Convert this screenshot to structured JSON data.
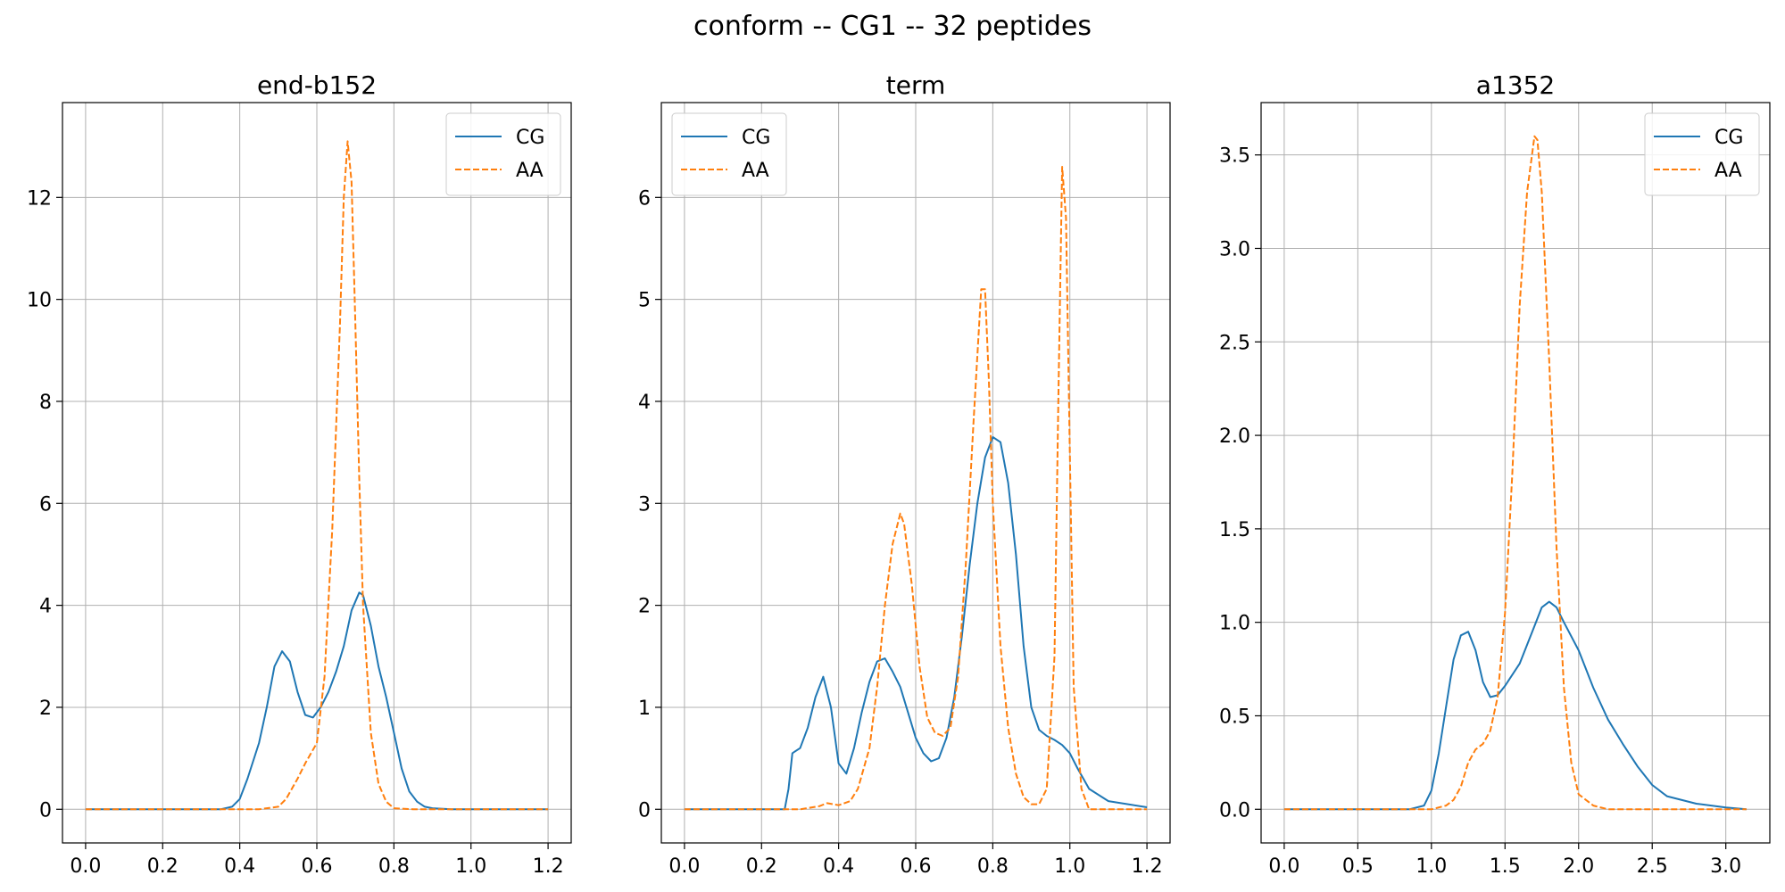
{
  "suptitle": "conform -- CG1 -- 32 peptides",
  "colors": {
    "CG": "#1f77b4",
    "AA": "#ff7f0e",
    "grid": "#b0b0b0"
  },
  "chart_data": [
    {
      "type": "line",
      "title": "end-b152",
      "xlabel": "",
      "ylabel": "",
      "xlim": [
        -0.06,
        1.26
      ],
      "ylim": [
        -0.66,
        13.86
      ],
      "xticks": [
        0.0,
        0.2,
        0.4,
        0.6,
        0.8,
        1.0,
        1.2
      ],
      "xtick_labels": [
        "0.0",
        "0.2",
        "0.4",
        "0.6",
        "0.8",
        "1.0",
        "1.2"
      ],
      "yticks": [
        0,
        2,
        4,
        6,
        8,
        10,
        12
      ],
      "ytick_labels": [
        "0",
        "2",
        "4",
        "6",
        "8",
        "10",
        "12"
      ],
      "grid": true,
      "legend": "upper right",
      "series": [
        {
          "name": "CG",
          "style": "solid",
          "x": [
            0,
            0.35,
            0.38,
            0.4,
            0.42,
            0.45,
            0.47,
            0.49,
            0.51,
            0.53,
            0.55,
            0.57,
            0.59,
            0.61,
            0.63,
            0.65,
            0.67,
            0.69,
            0.71,
            0.72,
            0.74,
            0.76,
            0.78,
            0.8,
            0.82,
            0.84,
            0.86,
            0.88,
            0.9,
            0.95,
            1.2
          ],
          "y": [
            0,
            0,
            0.05,
            0.2,
            0.6,
            1.3,
            2.0,
            2.8,
            3.1,
            2.9,
            2.3,
            1.85,
            1.8,
            2.0,
            2.3,
            2.7,
            3.2,
            3.9,
            4.25,
            4.2,
            3.6,
            2.8,
            2.2,
            1.5,
            0.8,
            0.35,
            0.15,
            0.05,
            0.02,
            0,
            0
          ]
        },
        {
          "name": "AA",
          "style": "dashed",
          "x": [
            0,
            0.45,
            0.5,
            0.52,
            0.55,
            0.57,
            0.6,
            0.62,
            0.64,
            0.66,
            0.67,
            0.68,
            0.69,
            0.7,
            0.71,
            0.72,
            0.74,
            0.76,
            0.78,
            0.8,
            0.85,
            1.2
          ],
          "y": [
            0,
            0,
            0.05,
            0.2,
            0.6,
            0.9,
            1.3,
            2.6,
            5.5,
            9.5,
            12.0,
            13.1,
            12.3,
            9.5,
            6.5,
            4.0,
            1.5,
            0.5,
            0.15,
            0.02,
            0,
            0
          ]
        }
      ]
    },
    {
      "type": "line",
      "title": "term",
      "xlabel": "",
      "ylabel": "",
      "xlim": [
        -0.06,
        1.26
      ],
      "ylim": [
        -0.33,
        6.93
      ],
      "xticks": [
        0.0,
        0.2,
        0.4,
        0.6,
        0.8,
        1.0,
        1.2
      ],
      "xtick_labels": [
        "0.0",
        "0.2",
        "0.4",
        "0.6",
        "0.8",
        "1.0",
        "1.2"
      ],
      "yticks": [
        0,
        1,
        2,
        3,
        4,
        5,
        6
      ],
      "ytick_labels": [
        "0",
        "1",
        "2",
        "3",
        "4",
        "5",
        "6"
      ],
      "grid": true,
      "legend": "upper left",
      "series": [
        {
          "name": "CG",
          "style": "solid",
          "x": [
            0,
            0.26,
            0.27,
            0.28,
            0.3,
            0.32,
            0.34,
            0.36,
            0.38,
            0.4,
            0.42,
            0.44,
            0.46,
            0.48,
            0.5,
            0.52,
            0.54,
            0.56,
            0.58,
            0.6,
            0.62,
            0.64,
            0.66,
            0.68,
            0.7,
            0.72,
            0.74,
            0.76,
            0.78,
            0.8,
            0.82,
            0.84,
            0.86,
            0.88,
            0.9,
            0.92,
            0.94,
            0.96,
            0.98,
            1.0,
            1.02,
            1.05,
            1.1,
            1.2
          ],
          "y": [
            0,
            0,
            0.2,
            0.55,
            0.6,
            0.8,
            1.1,
            1.3,
            1.0,
            0.45,
            0.35,
            0.6,
            0.95,
            1.25,
            1.45,
            1.48,
            1.35,
            1.2,
            0.95,
            0.7,
            0.55,
            0.47,
            0.5,
            0.7,
            1.1,
            1.7,
            2.4,
            3.0,
            3.45,
            3.65,
            3.6,
            3.2,
            2.5,
            1.6,
            1.0,
            0.78,
            0.72,
            0.68,
            0.63,
            0.55,
            0.4,
            0.2,
            0.08,
            0.02
          ]
        },
        {
          "name": "AA",
          "style": "dashed",
          "x": [
            0,
            0.3,
            0.35,
            0.37,
            0.4,
            0.43,
            0.45,
            0.48,
            0.5,
            0.52,
            0.54,
            0.56,
            0.57,
            0.59,
            0.61,
            0.63,
            0.65,
            0.67,
            0.69,
            0.71,
            0.73,
            0.75,
            0.77,
            0.78,
            0.79,
            0.8,
            0.82,
            0.84,
            0.86,
            0.88,
            0.9,
            0.92,
            0.94,
            0.96,
            0.97,
            0.98,
            0.99,
            1.0,
            1.01,
            1.03,
            1.05,
            1.2
          ],
          "y": [
            0,
            0,
            0.03,
            0.06,
            0.04,
            0.08,
            0.2,
            0.6,
            1.2,
            2.0,
            2.6,
            2.9,
            2.8,
            2.2,
            1.4,
            0.9,
            0.75,
            0.72,
            0.8,
            1.3,
            2.4,
            3.8,
            5.1,
            5.1,
            4.2,
            3.0,
            1.6,
            0.8,
            0.35,
            0.12,
            0.05,
            0.05,
            0.2,
            1.5,
            4.0,
            6.3,
            5.8,
            3.5,
            1.2,
            0.2,
            0,
            0
          ]
        }
      ]
    },
    {
      "type": "line",
      "title": "a1352",
      "xlabel": "",
      "ylabel": "",
      "xlim": [
        -0.157,
        3.299
      ],
      "ylim": [
        -0.18,
        3.78
      ],
      "xticks": [
        0.0,
        0.5,
        1.0,
        1.5,
        2.0,
        2.5,
        3.0
      ],
      "xtick_labels": [
        "0.0",
        "0.5",
        "1.0",
        "1.5",
        "2.0",
        "2.5",
        "3.0"
      ],
      "yticks": [
        0.0,
        0.5,
        1.0,
        1.5,
        2.0,
        2.5,
        3.0,
        3.5
      ],
      "ytick_labels": [
        "0.0",
        "0.5",
        "1.0",
        "1.5",
        "2.0",
        "2.5",
        "3.0",
        "3.5"
      ],
      "grid": true,
      "legend": "upper right",
      "series": [
        {
          "name": "CG",
          "style": "solid",
          "x": [
            0,
            0.85,
            0.95,
            1.0,
            1.05,
            1.1,
            1.15,
            1.2,
            1.25,
            1.3,
            1.35,
            1.4,
            1.45,
            1.5,
            1.6,
            1.7,
            1.75,
            1.8,
            1.85,
            1.9,
            2.0,
            2.1,
            2.2,
            2.3,
            2.4,
            2.5,
            2.6,
            2.8,
            3.0,
            3.14
          ],
          "y": [
            0,
            0,
            0.02,
            0.1,
            0.3,
            0.55,
            0.8,
            0.93,
            0.95,
            0.85,
            0.68,
            0.6,
            0.61,
            0.66,
            0.78,
            0.98,
            1.08,
            1.11,
            1.08,
            1.0,
            0.85,
            0.65,
            0.48,
            0.35,
            0.23,
            0.13,
            0.07,
            0.03,
            0.01,
            0
          ]
        },
        {
          "name": "AA",
          "style": "dashed",
          "x": [
            0,
            1.0,
            1.1,
            1.15,
            1.2,
            1.25,
            1.3,
            1.35,
            1.4,
            1.45,
            1.5,
            1.55,
            1.6,
            1.65,
            1.7,
            1.72,
            1.75,
            1.8,
            1.85,
            1.9,
            1.95,
            2.0,
            2.1,
            2.2,
            3.14
          ],
          "y": [
            0,
            0,
            0.02,
            0.05,
            0.12,
            0.25,
            0.32,
            0.35,
            0.42,
            0.6,
            1.05,
            1.8,
            2.7,
            3.3,
            3.6,
            3.58,
            3.3,
            2.4,
            1.4,
            0.65,
            0.25,
            0.08,
            0.02,
            0,
            0
          ]
        }
      ]
    }
  ]
}
